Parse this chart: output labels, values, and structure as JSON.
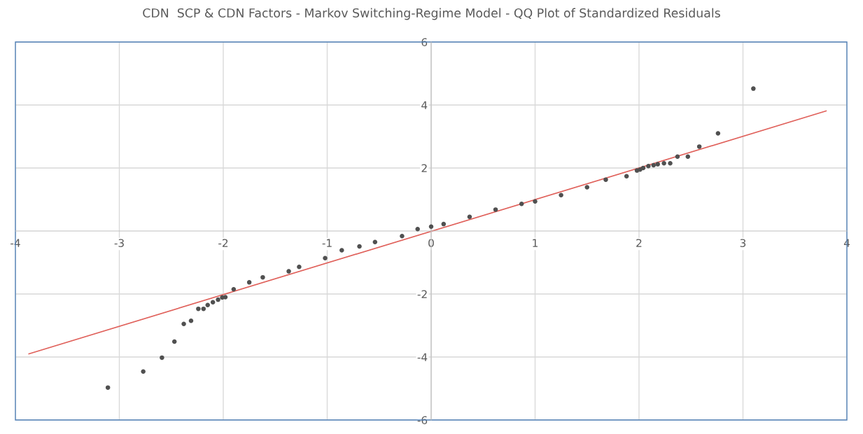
{
  "chart_data": {
    "type": "scatter",
    "title": "CDN  SCP & CDN Factors - Markov Switching-Regime Model - QQ Plot of Standardized Residuals",
    "series": [
      {
        "color": "#505050",
        "marker": "circle",
        "x": [
          -3.11,
          -2.77,
          -2.59,
          -2.47,
          -2.38,
          -2.31,
          -2.24,
          -2.19,
          -2.15,
          -2.1,
          -2.05,
          -2.01,
          -1.98,
          -1.9,
          -1.75,
          -1.62,
          -1.37,
          -1.27,
          -1.02,
          -0.86,
          -0.69,
          -0.54,
          -0.28,
          -0.13,
          0.0,
          0.12,
          0.37,
          0.62,
          0.87,
          1.0,
          1.25,
          1.5,
          1.68,
          1.88,
          1.98,
          2.01,
          2.04,
          2.09,
          2.14,
          2.18,
          2.24,
          2.3,
          2.37,
          2.47,
          2.58,
          2.76,
          3.1
        ],
        "values": [
          -4.97,
          -4.46,
          -4.02,
          -3.51,
          -2.95,
          -2.85,
          -2.47,
          -2.47,
          -2.35,
          -2.26,
          -2.18,
          -2.11,
          -2.1,
          -1.85,
          -1.63,
          -1.47,
          -1.28,
          -1.14,
          -0.86,
          -0.61,
          -0.49,
          -0.35,
          -0.16,
          0.06,
          0.14,
          0.22,
          0.45,
          0.68,
          0.86,
          0.94,
          1.14,
          1.39,
          1.63,
          1.74,
          1.92,
          1.95,
          2.0,
          2.06,
          2.09,
          2.12,
          2.15,
          2.15,
          2.36,
          2.36,
          2.68,
          3.1,
          4.52
        ]
      },
      {
        "type": "line",
        "color": "#e0605a",
        "line_style": "solid",
        "x": [
          -3.87,
          3.8
        ],
        "values": [
          -3.9,
          3.81
        ]
      }
    ],
    "xlim": [
      -4,
      4
    ],
    "xticks": [
      -4,
      -3,
      -2,
      -1,
      0,
      1,
      2,
      3,
      4
    ],
    "ylim": [
      -6,
      6
    ],
    "yticks": [
      -6,
      -4,
      -2,
      4,
      2,
      6
    ],
    "grid": true
  }
}
